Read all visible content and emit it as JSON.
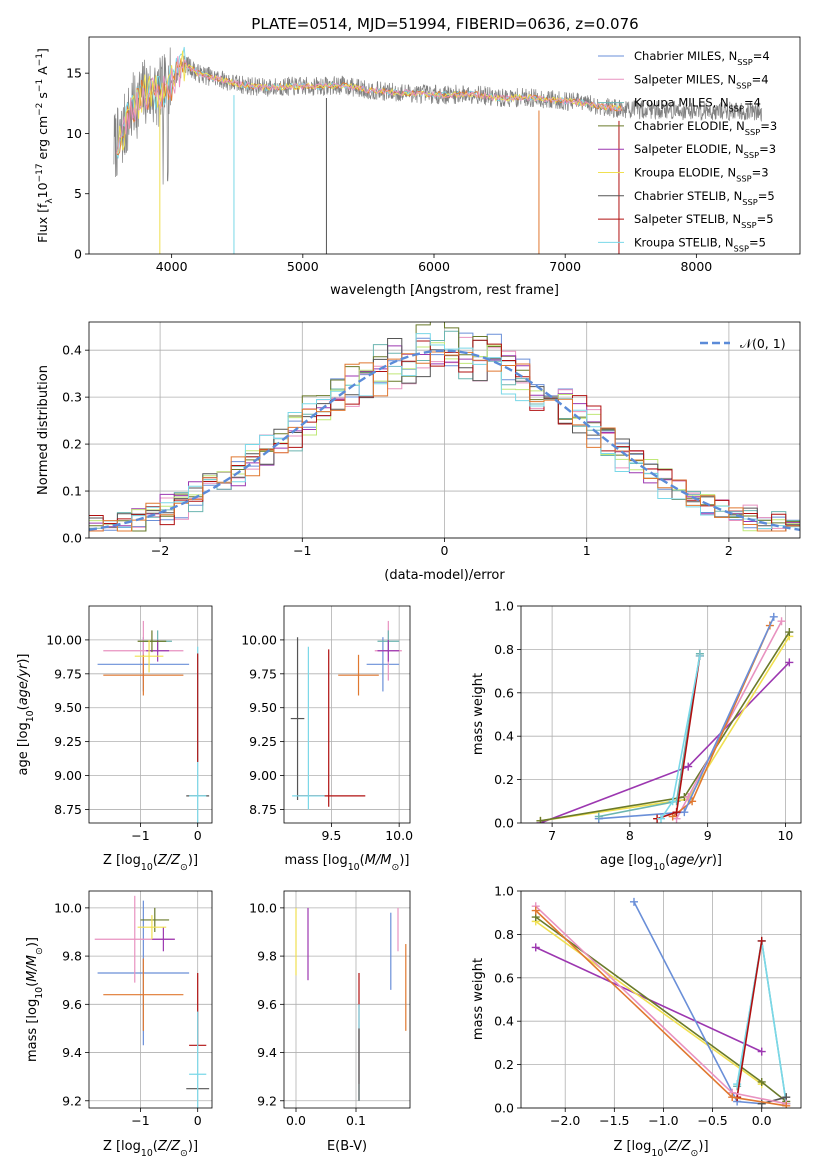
{
  "figure": {
    "title": "PLATE=0514, MJD=51994, FIBERID=0636, z=0.076",
    "model_colors": [
      "#6a8fd8",
      "#e892c0",
      "#6bb5b0",
      "#6a7a2a",
      "#9c37b0",
      "#f0e050",
      "#555555",
      "#b01010",
      "#7ad8e8"
    ]
  },
  "chart_data": [
    {
      "id": "spectrum",
      "type": "line",
      "xlabel": "wavelength [Angstrom, rest frame]",
      "ylabel": "Flux [f_λ10^-17 erg cm^-2 s^-1 A^-1]",
      "xlim": [
        3370,
        8790
      ],
      "ylim": [
        0,
        18
      ],
      "xticks": [
        4000,
        5000,
        6000,
        7000,
        8000
      ],
      "yticks": [
        0,
        5,
        10,
        15
      ],
      "legend_loc": "right",
      "legend": [
        {
          "name": "Chabrier MILES",
          "nssp": "4",
          "color": "#6a8fd8"
        },
        {
          "name": "Salpeter MILES",
          "nssp": "4",
          "color": "#e892c0"
        },
        {
          "name": "Kroupa MILES",
          "nssp": "4",
          "color": "#6bb5b0"
        },
        {
          "name": "Chabrier ELODIE",
          "nssp": "3",
          "color": "#6a7a2a"
        },
        {
          "name": "Salpeter ELODIE",
          "nssp": "3",
          "color": "#9c37b0"
        },
        {
          "name": "Kroupa ELODIE",
          "nssp": "3",
          "color": "#f0e050"
        },
        {
          "name": "Chabrier STELIB",
          "nssp": "5",
          "color": "#555555"
        },
        {
          "name": "Salpeter STELIB",
          "nssp": "5",
          "color": "#b01010"
        },
        {
          "name": "Kroupa STELIB",
          "nssp": "5",
          "color": "#7ad8e8"
        }
      ],
      "continuum": {
        "x": [
          3560,
          3600,
          3700,
          3800,
          3900,
          4000,
          4100,
          4200,
          4300,
          4500,
          4700,
          4900,
          5100,
          5300,
          5500,
          5700,
          5900,
          6100,
          6300,
          6500,
          6700,
          6900,
          7100,
          7300,
          7440
        ],
        "y": [
          9.0,
          9.3,
          12.0,
          13.5,
          13.2,
          14.3,
          15.8,
          15.0,
          14.7,
          14.1,
          13.8,
          13.9,
          13.9,
          14.0,
          13.6,
          13.4,
          13.3,
          13.2,
          13.3,
          12.9,
          13.0,
          12.8,
          12.6,
          12.2,
          12.0
        ]
      },
      "data_extent": [
        3560,
        8500
      ]
    },
    {
      "id": "residuals",
      "type": "line",
      "xlabel": "(data-model)/error",
      "ylabel": "Normed distribution",
      "xlim": [
        -2.5,
        2.5
      ],
      "ylim": [
        0,
        0.46
      ],
      "xticks": [
        -2,
        -1,
        0,
        1,
        2
      ],
      "yticks": [
        0.0,
        0.1,
        0.2,
        0.3,
        0.4
      ],
      "bins": 50,
      "gaussian_label": "𝒩(0, 1)",
      "gaussian_color": "#5b8bd8",
      "legend_loc": "upper right"
    },
    {
      "id": "age-vs-Z",
      "type": "scatter",
      "xlabel": "Z [log10(Z/Z☉)]",
      "ylabel": "age  [log10(age/yr)]",
      "xlim": [
        -1.9,
        0.25
      ],
      "ylim": [
        8.65,
        10.25
      ],
      "xticks": [
        -1,
        0
      ],
      "yticks": [
        8.75,
        9.0,
        9.25,
        9.5,
        9.75,
        10.0
      ],
      "crosses": [
        {
          "x": -0.95,
          "xe": 0.8,
          "y": 9.82,
          "ye": 0.2,
          "c": "#6a8fd8"
        },
        {
          "x": -0.95,
          "xe": 0.7,
          "y": 9.92,
          "ye": 0.22,
          "c": "#e892c0"
        },
        {
          "x": -0.95,
          "xe": 0.7,
          "y": 9.74,
          "ye": 0.15,
          "c": "#e07830"
        },
        {
          "x": -0.7,
          "xe": 0.25,
          "y": 9.99,
          "ye": 0.08,
          "c": "#6bb5b0"
        },
        {
          "x": -0.7,
          "xe": 0.2,
          "y": 9.92,
          "ye": 0.08,
          "c": "#9c37b0"
        },
        {
          "x": -0.8,
          "xe": 0.25,
          "y": 9.99,
          "ye": 0.08,
          "c": "#6a7a2a"
        },
        {
          "x": -0.85,
          "xe": 0.25,
          "y": 9.88,
          "ye": 0.12,
          "c": "#f0e050"
        },
        {
          "x": 0.0,
          "xe": 0.2,
          "y": 8.85,
          "ye": 0.0,
          "c": "#555555"
        },
        {
          "x": 0.0,
          "xe": 0.15,
          "y": 8.85,
          "ye": 1.1,
          "c": "#7ad8e8"
        },
        {
          "x": 0.0,
          "xe": 0.0,
          "y": 9.5,
          "ye": 0.4,
          "c": "#b01010"
        }
      ]
    },
    {
      "id": "age-vs-mass",
      "type": "scatter",
      "xlabel": "mass [log10(M/M☉)]",
      "ylabel": "",
      "xlim": [
        9.15,
        10.08
      ],
      "ylim": [
        8.65,
        10.25
      ],
      "xticks": [
        9.5,
        10.0
      ],
      "yticks": [
        8.75,
        9.0,
        9.25,
        9.5,
        9.75,
        10.0
      ],
      "crosses": [
        {
          "x": 9.88,
          "xe": 0.12,
          "y": 9.82,
          "ye": 0.2,
          "c": "#6a8fd8"
        },
        {
          "x": 9.92,
          "xe": 0.1,
          "y": 9.92,
          "ye": 0.22,
          "c": "#e892c0"
        },
        {
          "x": 9.7,
          "xe": 0.15,
          "y": 9.74,
          "ye": 0.15,
          "c": "#e07830"
        },
        {
          "x": 9.92,
          "xe": 0.08,
          "y": 9.99,
          "ye": 0.08,
          "c": "#6bb5b0"
        },
        {
          "x": 9.92,
          "xe": 0.08,
          "y": 9.92,
          "ye": 0.08,
          "c": "#9c37b0"
        },
        {
          "x": 9.25,
          "xe": 0.05,
          "y": 9.42,
          "ye": 0.6,
          "c": "#555555"
        },
        {
          "x": 9.5,
          "xe": 0.25,
          "y": 8.85,
          "ye": 0.0,
          "c": "#b01010"
        },
        {
          "x": 9.33,
          "xe": 0.12,
          "y": 8.85,
          "ye": 0.0,
          "c": "#7ad8e8"
        },
        {
          "x": 9.33,
          "xe": 0.0,
          "y": 9.35,
          "ye": 0.6,
          "c": "#7ad8e8"
        },
        {
          "x": 9.48,
          "xe": 0.0,
          "y": 9.35,
          "ye": 0.58,
          "c": "#b01010"
        }
      ]
    },
    {
      "id": "weight-vs-age",
      "type": "line",
      "xlabel": "age  [log10(age/yr)]",
      "ylabel": "mass weight",
      "xlim": [
        6.6,
        10.2
      ],
      "ylim": [
        0,
        1.0
      ],
      "xticks": [
        7,
        8,
        9,
        10
      ],
      "yticks": [
        0.0,
        0.2,
        0.4,
        0.6,
        0.8,
        1.0
      ],
      "series": [
        {
          "c": "#9c37b0",
          "x": [
            6.85,
            8.75,
            10.05
          ],
          "y": [
            0.0,
            0.26,
            0.74
          ]
        },
        {
          "c": "#f0e050",
          "x": [
            6.85,
            8.75,
            10.05
          ],
          "y": [
            0.01,
            0.11,
            0.86
          ]
        },
        {
          "c": "#6a7a2a",
          "x": [
            6.85,
            8.7,
            10.05
          ],
          "y": [
            0.01,
            0.12,
            0.88
          ]
        },
        {
          "c": "#e892c0",
          "x": [
            8.6,
            8.75,
            9.95
          ],
          "y": [
            0.02,
            0.12,
            0.93
          ]
        },
        {
          "c": "#e07830",
          "x": [
            8.55,
            8.8,
            9.8
          ],
          "y": [
            0.03,
            0.1,
            0.91
          ]
        },
        {
          "c": "#6a8fd8",
          "x": [
            7.6,
            8.7,
            9.85
          ],
          "y": [
            0.02,
            0.05,
            0.95
          ]
        },
        {
          "c": "#6bb5b0",
          "x": [
            7.6,
            8.6,
            8.9
          ],
          "y": [
            0.03,
            0.1,
            0.78
          ]
        },
        {
          "c": "#b01010",
          "x": [
            8.35,
            8.6,
            8.9
          ],
          "y": [
            0.02,
            0.05,
            0.77
          ]
        },
        {
          "c": "#7ad8e8",
          "x": [
            8.4,
            8.55,
            8.9
          ],
          "y": [
            0.02,
            0.1,
            0.77
          ]
        }
      ]
    },
    {
      "id": "mass-vs-Z",
      "type": "scatter",
      "xlabel": "Z [log10(Z/Z☉)]",
      "ylabel": "mass [log10(M/M☉)]",
      "xlim": [
        -1.9,
        0.25
      ],
      "ylim": [
        9.17,
        10.07
      ],
      "xticks": [
        -1,
        0
      ],
      "yticks": [
        9.2,
        9.4,
        9.6,
        9.8,
        10.0
      ],
      "crosses": [
        {
          "x": -0.95,
          "xe": 0.8,
          "y": 9.73,
          "ye": 0.3,
          "c": "#6a8fd8"
        },
        {
          "x": -1.1,
          "xe": 0.7,
          "y": 9.87,
          "ye": 0.18,
          "c": "#e892c0"
        },
        {
          "x": -0.95,
          "xe": 0.7,
          "y": 9.64,
          "ye": 0.15,
          "c": "#e07830"
        },
        {
          "x": -0.75,
          "xe": 0.25,
          "y": 9.95,
          "ye": 0.05,
          "c": "#6a7a2a"
        },
        {
          "x": -0.6,
          "xe": 0.2,
          "y": 9.87,
          "ye": 0.05,
          "c": "#9c37b0"
        },
        {
          "x": -0.8,
          "xe": 0.25,
          "y": 9.92,
          "ye": 0.05,
          "c": "#f0e050"
        },
        {
          "x": 0.0,
          "xe": 0.15,
          "y": 9.43,
          "ye": 0.0,
          "c": "#b01010"
        },
        {
          "x": 0.0,
          "xe": 0.0,
          "y": 9.58,
          "ye": 0.15,
          "c": "#b01010"
        },
        {
          "x": 0.0,
          "xe": 0.2,
          "y": 9.25,
          "ye": 0.0,
          "c": "#555555"
        },
        {
          "x": 0.0,
          "xe": 0.15,
          "y": 9.31,
          "ye": 0.0,
          "c": "#7ad8e8"
        },
        {
          "x": 0.0,
          "xe": 0.0,
          "y": 9.37,
          "ye": 0.2,
          "c": "#7ad8e8"
        }
      ]
    },
    {
      "id": "mass-vs-EBV",
      "type": "scatter",
      "xlabel": "E(B-V)",
      "ylabel": "",
      "xlim": [
        -0.02,
        0.19
      ],
      "ylim": [
        9.17,
        10.07
      ],
      "xticks": [
        0.0,
        0.1
      ],
      "yticks": [
        9.2,
        9.4,
        9.6,
        9.8,
        10.0
      ],
      "crosses": [
        {
          "x": 0.0,
          "xe": 0.0,
          "y": 9.86,
          "ye": 0.14,
          "c": "#f0e050"
        },
        {
          "x": 0.02,
          "xe": 0.0,
          "y": 9.85,
          "ye": 0.15,
          "c": "#9c37b0"
        },
        {
          "x": 0.105,
          "xe": 0.0,
          "y": 9.5,
          "ye": 0.23,
          "c": "#b01010"
        },
        {
          "x": 0.105,
          "xe": 0.0,
          "y": 9.4,
          "ye": 0.2,
          "c": "#7ad8e8"
        },
        {
          "x": 0.105,
          "xe": 0.0,
          "y": 9.35,
          "ye": 0.15,
          "c": "#555555"
        },
        {
          "x": 0.158,
          "xe": 0.0,
          "y": 9.82,
          "ye": 0.16,
          "c": "#6a8fd8"
        },
        {
          "x": 0.17,
          "xe": 0.0,
          "y": 9.91,
          "ye": 0.09,
          "c": "#e892c0"
        },
        {
          "x": 0.183,
          "xe": 0.0,
          "y": 9.67,
          "ye": 0.18,
          "c": "#e07830"
        }
      ]
    },
    {
      "id": "weight-vs-Z",
      "type": "line",
      "xlabel": "Z [log10(Z/Z☉)]",
      "ylabel": "mass weight",
      "xlim": [
        -2.45,
        0.4
      ],
      "ylim": [
        0,
        1.0
      ],
      "xticks": [
        -2.0,
        -1.5,
        -1.0,
        -0.5,
        0.0
      ],
      "yticks": [
        0.0,
        0.2,
        0.4,
        0.6,
        0.8,
        1.0
      ],
      "series": [
        {
          "c": "#9c37b0",
          "x": [
            -2.3,
            0.0
          ],
          "y": [
            0.74,
            0.26
          ]
        },
        {
          "c": "#f0e050",
          "x": [
            -2.3,
            0.0
          ],
          "y": [
            0.86,
            0.11
          ]
        },
        {
          "c": "#6a7a2a",
          "x": [
            -2.3,
            0.0,
            0.25
          ],
          "y": [
            0.88,
            0.12,
            0.03
          ]
        },
        {
          "c": "#6a8fd8",
          "x": [
            -1.3,
            -0.25,
            0.0
          ],
          "y": [
            0.95,
            0.03,
            0.02
          ]
        },
        {
          "c": "#6bb5b0",
          "x": [
            -0.25,
            0.0,
            0.25
          ],
          "y": [
            0.1,
            0.77,
            0.02
          ]
        },
        {
          "c": "#7ad8e8",
          "x": [
            -0.25,
            0.0,
            0.25
          ],
          "y": [
            0.11,
            0.77,
            0.02
          ]
        },
        {
          "c": "#555555",
          "x": [
            0.0,
            0.25
          ],
          "y": [
            0.02,
            0.05
          ]
        },
        {
          "c": "#b01010",
          "x": [
            -0.25,
            0.0
          ],
          "y": [
            0.05,
            0.77
          ]
        },
        {
          "c": "#e892c0",
          "x": [
            -2.3,
            -0.3,
            0.25
          ],
          "y": [
            0.93,
            0.07,
            0.02
          ]
        },
        {
          "c": "#e07830",
          "x": [
            -2.3,
            -0.3,
            0.25
          ],
          "y": [
            0.91,
            0.05,
            0.01
          ]
        }
      ]
    }
  ]
}
